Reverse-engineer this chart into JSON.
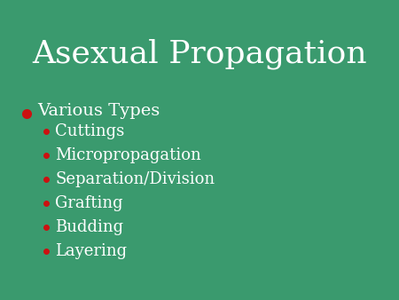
{
  "title": "Asexual Propagation",
  "background_color": "#3a9a6e",
  "title_color": "#ffffff",
  "title_fontsize": 26,
  "title_font": "serif",
  "main_bullet_color": "#cc1111",
  "main_bullet_text": "Various Types",
  "main_bullet_fontsize": 14,
  "sub_bullet_color": "#cc1111",
  "sub_items": [
    "Cuttings",
    "Micropropagation",
    "Separation/Division",
    "Grafting",
    "Budding",
    "Layering"
  ],
  "sub_fontsize": 13,
  "text_color": "#ffffff"
}
